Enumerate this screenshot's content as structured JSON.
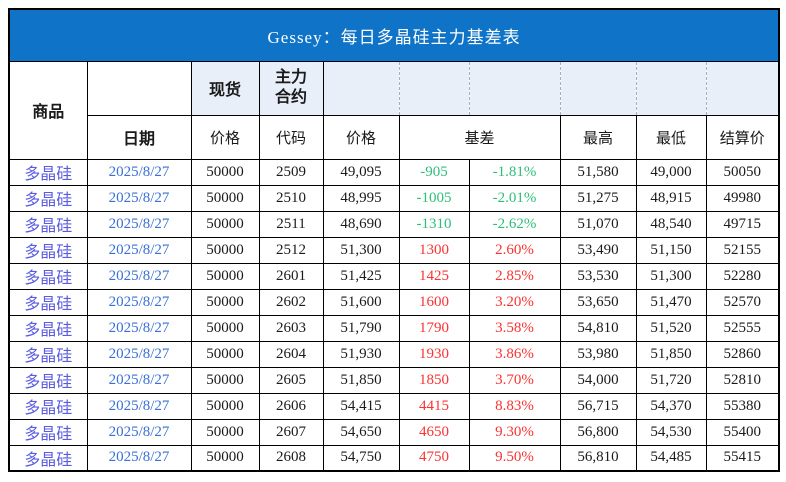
{
  "title": "Gessey：每日多晶硅主力基差表",
  "header": {
    "commodity": "商品",
    "date": "日期",
    "spot": "现货",
    "main_contract_line1": "主力",
    "main_contract_line2": "合约",
    "spot_price": "价格",
    "code": "代码",
    "price": "价格",
    "basis": "基差",
    "high": "最高",
    "low": "最低",
    "settlement": "结算价"
  },
  "colors": {
    "title_bg": "#0F74C8",
    "title_text": "#FFFFFF",
    "header_shade": "#E9EFF9",
    "commodity_text": "#5B5BE0",
    "date_text": "#3A6FD6",
    "number_text": "#1A1A1A",
    "positive": "#FC3232",
    "negative": "#2EBE7A",
    "grid": "#000000"
  },
  "rows": [
    {
      "commodity": "多晶硅",
      "date": "2025/8/27",
      "spot_price": "50000",
      "code": "2509",
      "price": "49,095",
      "basis": "-905",
      "basis_pct": "-1.81%",
      "high": "51,580",
      "low": "49,000",
      "settlement": "50050"
    },
    {
      "commodity": "多晶硅",
      "date": "2025/8/27",
      "spot_price": "50000",
      "code": "2510",
      "price": "48,995",
      "basis": "-1005",
      "basis_pct": "-2.01%",
      "high": "51,275",
      "low": "48,915",
      "settlement": "49980"
    },
    {
      "commodity": "多晶硅",
      "date": "2025/8/27",
      "spot_price": "50000",
      "code": "2511",
      "price": "48,690",
      "basis": "-1310",
      "basis_pct": "-2.62%",
      "high": "51,070",
      "low": "48,540",
      "settlement": "49715"
    },
    {
      "commodity": "多晶硅",
      "date": "2025/8/27",
      "spot_price": "50000",
      "code": "2512",
      "price": "51,300",
      "basis": "1300",
      "basis_pct": "2.60%",
      "high": "53,490",
      "low": "51,150",
      "settlement": "52155"
    },
    {
      "commodity": "多晶硅",
      "date": "2025/8/27",
      "spot_price": "50000",
      "code": "2601",
      "price": "51,425",
      "basis": "1425",
      "basis_pct": "2.85%",
      "high": "53,530",
      "low": "51,300",
      "settlement": "52280"
    },
    {
      "commodity": "多晶硅",
      "date": "2025/8/27",
      "spot_price": "50000",
      "code": "2602",
      "price": "51,600",
      "basis": "1600",
      "basis_pct": "3.20%",
      "high": "53,650",
      "low": "51,470",
      "settlement": "52570"
    },
    {
      "commodity": "多晶硅",
      "date": "2025/8/27",
      "spot_price": "50000",
      "code": "2603",
      "price": "51,790",
      "basis": "1790",
      "basis_pct": "3.58%",
      "high": "54,810",
      "low": "51,520",
      "settlement": "52555"
    },
    {
      "commodity": "多晶硅",
      "date": "2025/8/27",
      "spot_price": "50000",
      "code": "2604",
      "price": "51,930",
      "basis": "1930",
      "basis_pct": "3.86%",
      "high": "53,980",
      "low": "51,850",
      "settlement": "52860"
    },
    {
      "commodity": "多晶硅",
      "date": "2025/8/27",
      "spot_price": "50000",
      "code": "2605",
      "price": "51,850",
      "basis": "1850",
      "basis_pct": "3.70%",
      "high": "54,000",
      "low": "51,720",
      "settlement": "52810"
    },
    {
      "commodity": "多晶硅",
      "date": "2025/8/27",
      "spot_price": "50000",
      "code": "2606",
      "price": "54,415",
      "basis": "4415",
      "basis_pct": "8.83%",
      "high": "56,715",
      "low": "54,370",
      "settlement": "55380"
    },
    {
      "commodity": "多晶硅",
      "date": "2025/8/27",
      "spot_price": "50000",
      "code": "2607",
      "price": "54,650",
      "basis": "4650",
      "basis_pct": "9.30%",
      "high": "56,800",
      "low": "54,530",
      "settlement": "55400"
    },
    {
      "commodity": "多晶硅",
      "date": "2025/8/27",
      "spot_price": "50000",
      "code": "2608",
      "price": "54,750",
      "basis": "4750",
      "basis_pct": "9.50%",
      "high": "56,810",
      "low": "54,485",
      "settlement": "55415"
    }
  ]
}
